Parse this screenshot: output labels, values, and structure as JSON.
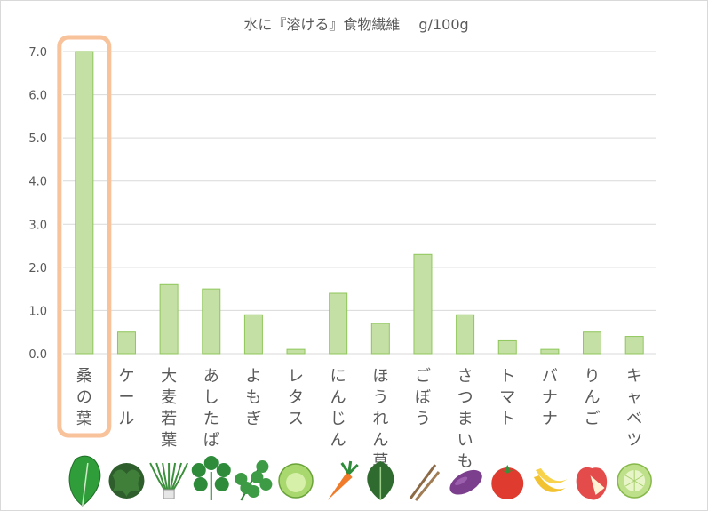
{
  "chart_data": {
    "type": "bar",
    "title": "水に『溶ける』食物繊維　 g/100g",
    "xlabel": "",
    "ylabel": "",
    "ylim": [
      0,
      7
    ],
    "yticks": [
      "0.0",
      "1.0",
      "2.0",
      "3.0",
      "4.0",
      "5.0",
      "6.0",
      "7.0"
    ],
    "grid": true,
    "legend": "none",
    "categories": [
      "桑の葉",
      "ケール",
      "大麦若葉",
      "あしたば",
      "よもぎ",
      "レタス",
      "にんじん",
      "ほうれん草",
      "ごぼう",
      "さつまいも",
      "トマト",
      "バナナ",
      "りんご",
      "キャベツ"
    ],
    "values": [
      7.0,
      0.5,
      1.6,
      1.5,
      0.9,
      0.1,
      1.4,
      0.7,
      2.3,
      0.9,
      0.3,
      0.1,
      0.5,
      0.4
    ],
    "highlight_index": 0,
    "colors": {
      "bar_fill": "#c5e0a5",
      "bar_stroke": "#8fc65a",
      "highlight": "#f8c29b",
      "grid": "#d9d9d9",
      "text": "#595959"
    },
    "icons": [
      "mulberry-leaf-icon",
      "kale-icon",
      "barley-grass-icon",
      "ashitaba-icon",
      "mugwort-icon",
      "lettuce-icon",
      "carrot-icon",
      "spinach-icon",
      "burdock-icon",
      "sweet-potato-icon",
      "tomato-icon",
      "banana-icon",
      "apple-icon",
      "cabbage-icon"
    ]
  }
}
